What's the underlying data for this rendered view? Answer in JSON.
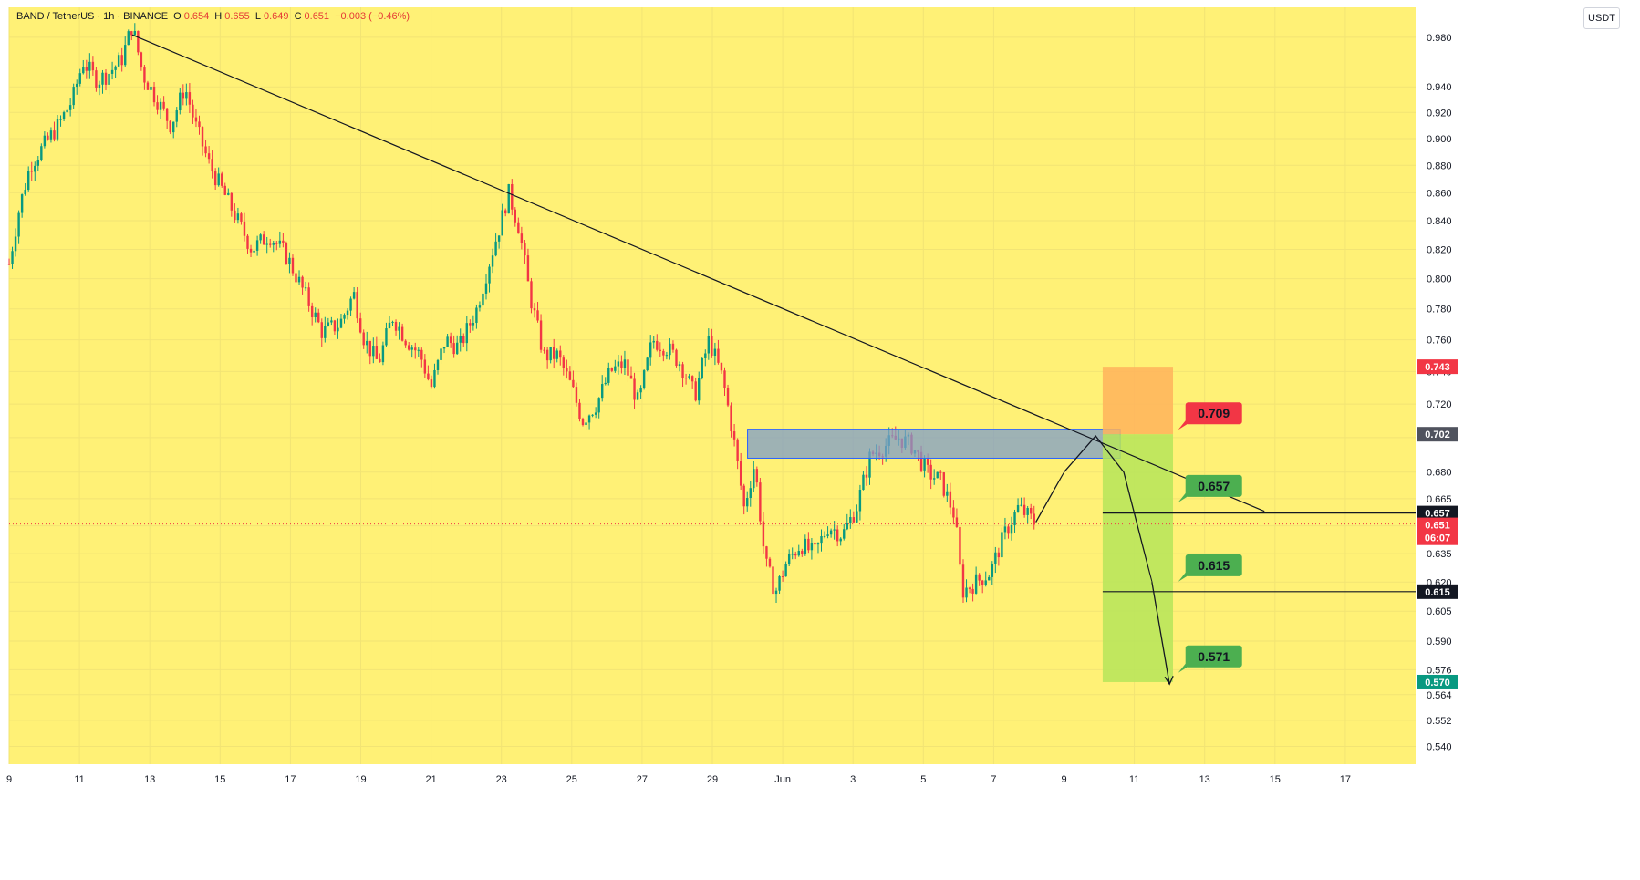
{
  "header": {
    "symbol": "BAND / TetherUS · 1h · BINANCE",
    "o_label": "O",
    "o_val": "0.654",
    "h_label": "H",
    "h_val": "0.655",
    "l_label": "L",
    "l_val": "0.649",
    "c_label": "C",
    "c_val": "0.651",
    "change": "−0.003 (−0.46%)"
  },
  "currency_button": "USDT",
  "colors": {
    "background": "#fff176",
    "grid": "#f2e474",
    "up": "#089981",
    "down": "#f23645",
    "trendline": "#131722",
    "zone_fill": "#7e9cc9",
    "zone_stroke": "#2962ff",
    "stop_fill": "#ffb35c",
    "target_fill": "#b6e55a",
    "target_label": "#4caf50",
    "stop_label": "#f23645"
  },
  "chart_data": {
    "type": "candlestick",
    "title": "BAND / TetherUS · 1h · BINANCE",
    "y_ticks": [
      "0.980",
      "0.940",
      "0.920",
      "0.900",
      "0.880",
      "0.860",
      "0.840",
      "0.820",
      "0.800",
      "0.780",
      "0.760",
      "0.740",
      "0.720",
      "0.700",
      "0.680",
      "0.665",
      "0.650",
      "0.635",
      "0.620",
      "0.605",
      "0.590",
      "0.576",
      "0.564",
      "0.552",
      "0.540"
    ],
    "ylim": [
      0.532,
      1.005
    ],
    "y_scale": "log",
    "x_ticks": [
      "9",
      "11",
      "13",
      "15",
      "17",
      "19",
      "21",
      "23",
      "25",
      "27",
      "29",
      "Jun",
      "3",
      "5",
      "7",
      "9",
      "11",
      "13",
      "15",
      "17"
    ],
    "price_path": [
      [
        9.0,
        0.81
      ],
      [
        9.3,
        0.85
      ],
      [
        9.6,
        0.88
      ],
      [
        10.0,
        0.895
      ],
      [
        10.4,
        0.91
      ],
      [
        10.8,
        0.93
      ],
      [
        11.1,
        0.96
      ],
      [
        11.5,
        0.945
      ],
      [
        11.8,
        0.95
      ],
      [
        12.2,
        0.962
      ],
      [
        12.5,
        0.99
      ],
      [
        12.8,
        0.95
      ],
      [
        13.2,
        0.93
      ],
      [
        13.6,
        0.91
      ],
      [
        14.0,
        0.94
      ],
      [
        14.3,
        0.91
      ],
      [
        14.7,
        0.88
      ],
      [
        15.1,
        0.86
      ],
      [
        15.5,
        0.84
      ],
      [
        15.9,
        0.82
      ],
      [
        16.4,
        0.83
      ],
      [
        16.9,
        0.815
      ],
      [
        17.4,
        0.79
      ],
      [
        17.9,
        0.765
      ],
      [
        18.4,
        0.77
      ],
      [
        18.8,
        0.79
      ],
      [
        19.1,
        0.76
      ],
      [
        19.5,
        0.745
      ],
      [
        19.9,
        0.775
      ],
      [
        20.3,
        0.76
      ],
      [
        20.7,
        0.75
      ],
      [
        21.0,
        0.73
      ],
      [
        21.4,
        0.76
      ],
      [
        21.8,
        0.755
      ],
      [
        22.3,
        0.78
      ],
      [
        22.7,
        0.815
      ],
      [
        23.0,
        0.84
      ],
      [
        23.2,
        0.86
      ],
      [
        23.5,
        0.835
      ],
      [
        23.8,
        0.79
      ],
      [
        24.2,
        0.75
      ],
      [
        24.6,
        0.75
      ],
      [
        25.0,
        0.73
      ],
      [
        25.3,
        0.71
      ],
      [
        25.7,
        0.72
      ],
      [
        26.1,
        0.74
      ],
      [
        26.5,
        0.745
      ],
      [
        26.9,
        0.72
      ],
      [
        27.3,
        0.76
      ],
      [
        27.7,
        0.755
      ],
      [
        28.1,
        0.745
      ],
      [
        28.5,
        0.725
      ],
      [
        28.9,
        0.76
      ],
      [
        29.3,
        0.735
      ],
      [
        29.6,
        0.7
      ],
      [
        29.9,
        0.66
      ],
      [
        30.2,
        0.685
      ],
      [
        30.5,
        0.63
      ],
      [
        30.8,
        0.615
      ],
      [
        31.1,
        0.63
      ],
      [
        31.5,
        0.64
      ],
      [
        31.9,
        0.635
      ],
      [
        32.3,
        0.65
      ],
      [
        32.7,
        0.645
      ],
      [
        33.1,
        0.66
      ],
      [
        33.5,
        0.69
      ],
      [
        33.9,
        0.695
      ],
      [
        34.3,
        0.7
      ],
      [
        34.7,
        0.695
      ],
      [
        35.1,
        0.68
      ],
      [
        35.5,
        0.675
      ],
      [
        35.9,
        0.655
      ],
      [
        36.1,
        0.615
      ],
      [
        36.5,
        0.62
      ],
      [
        36.9,
        0.625
      ],
      [
        37.3,
        0.645
      ],
      [
        37.7,
        0.66
      ],
      [
        38.0,
        0.655
      ],
      [
        38.2,
        0.651
      ]
    ],
    "trendline": {
      "start": [
        12.5,
        0.982
      ],
      "end": [
        44.7,
        0.658
      ]
    },
    "zone": {
      "x0": 30.0,
      "x1": 40.6,
      "y_top": 0.705,
      "y_bottom": 0.688
    },
    "stop_box": {
      "x0": 40.1,
      "x1": 42.1,
      "y_top": 0.743,
      "y_bottom": 0.702
    },
    "target_box": {
      "x0": 40.1,
      "x1": 42.1,
      "y_top": 0.702,
      "y_bottom": 0.57
    },
    "hlines": [
      {
        "x0": 40.1,
        "x1": 49.0,
        "value": 0.657
      },
      {
        "x0": 40.1,
        "x1": 49.0,
        "value": 0.615
      }
    ],
    "projection_path": [
      [
        38.2,
        0.652
      ],
      [
        39.0,
        0.68
      ],
      [
        39.9,
        0.701
      ],
      [
        40.7,
        0.68
      ],
      [
        41.5,
        0.62
      ],
      [
        42.0,
        0.569
      ]
    ],
    "price_line_value": 0.651,
    "callouts": [
      {
        "text": "0.709",
        "color": "stop",
        "x": 42.3,
        "y": 0.709
      },
      {
        "text": "0.657",
        "color": "target",
        "x": 42.3,
        "y": 0.667
      },
      {
        "text": "0.615",
        "color": "target",
        "x": 42.3,
        "y": 0.624
      },
      {
        "text": "0.571",
        "color": "target",
        "x": 42.3,
        "y": 0.578
      }
    ],
    "axis_badges": [
      {
        "text": "0.743",
        "value": 0.743,
        "bg": "#f23645",
        "fg": "#ffffff"
      },
      {
        "text": "0.702",
        "value": 0.702,
        "bg": "#50535e",
        "fg": "#ffffff"
      },
      {
        "text": "0.657",
        "value": 0.657,
        "bg": "#131722",
        "fg": "#ffffff"
      },
      {
        "text": "0.651",
        "value": 0.6505,
        "bg": "#f23645",
        "fg": "#ffffff"
      },
      {
        "text": "06:07",
        "value": 0.6435,
        "bg": "#f23645",
        "fg": "#ffffff"
      },
      {
        "text": "0.615",
        "value": 0.615,
        "bg": "#131722",
        "fg": "#ffffff"
      },
      {
        "text": "0.570",
        "value": 0.57,
        "bg": "#089981",
        "fg": "#ffffff"
      }
    ]
  }
}
